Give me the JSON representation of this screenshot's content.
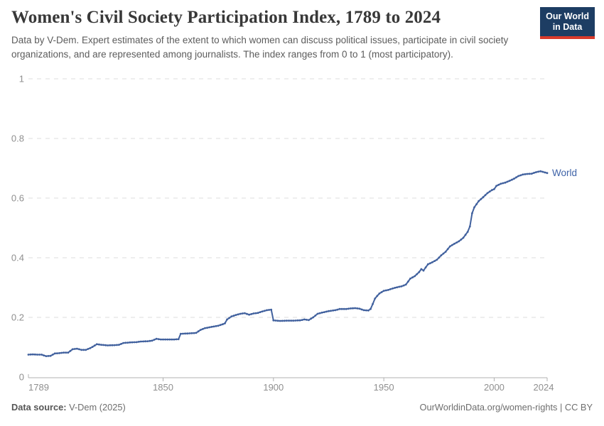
{
  "header": {
    "title": "Women's Civil Society Participation Index, 1789 to 2024",
    "subtitle": "Data by V-Dem. Expert estimates of the extent to which women can discuss political issues, participate in civil society organizations, and are represented among journalists. The index ranges from 0 to 1 (most participatory).",
    "logo": {
      "line1": "Our World",
      "line2": "in Data",
      "bg_color": "#1d3d63",
      "accent_color": "#d93a2b"
    }
  },
  "chart_data": {
    "type": "line",
    "title": "Women's Civil Society Participation Index, 1789 to 2024",
    "xlabel": "",
    "ylabel": "",
    "xlim": [
      1789,
      2024
    ],
    "ylim": [
      0,
      1
    ],
    "grid": "dashed-horizontal",
    "legend": "end-of-line-label",
    "x_ticks": [
      [
        1789,
        "1789"
      ],
      [
        1850,
        "1850"
      ],
      [
        1900,
        "1900"
      ],
      [
        1950,
        "1950"
      ],
      [
        2000,
        "2000"
      ],
      [
        2024,
        "2024"
      ]
    ],
    "y_ticks": [
      [
        0,
        "0"
      ],
      [
        0.2,
        "0.2"
      ],
      [
        0.4,
        "0.4"
      ],
      [
        0.6,
        "0.6"
      ],
      [
        0.8,
        "0.8"
      ],
      [
        1,
        "1"
      ]
    ],
    "series": [
      {
        "name": "World",
        "color": "#41619e",
        "label_color": "#3e63a8",
        "points": [
          [
            1789,
            0.075
          ],
          [
            1791,
            0.076
          ],
          [
            1793,
            0.075
          ],
          [
            1795,
            0.075
          ],
          [
            1797,
            0.07
          ],
          [
            1799,
            0.071
          ],
          [
            1801,
            0.079
          ],
          [
            1803,
            0.08
          ],
          [
            1805,
            0.082
          ],
          [
            1807,
            0.082
          ],
          [
            1809,
            0.093
          ],
          [
            1811,
            0.095
          ],
          [
            1813,
            0.091
          ],
          [
            1815,
            0.091
          ],
          [
            1817,
            0.097
          ],
          [
            1818,
            0.101
          ],
          [
            1820,
            0.11
          ],
          [
            1822,
            0.108
          ],
          [
            1825,
            0.106
          ],
          [
            1828,
            0.107
          ],
          [
            1830,
            0.108
          ],
          [
            1832,
            0.114
          ],
          [
            1835,
            0.116
          ],
          [
            1838,
            0.117
          ],
          [
            1840,
            0.119
          ],
          [
            1843,
            0.12
          ],
          [
            1845,
            0.122
          ],
          [
            1847,
            0.128
          ],
          [
            1849,
            0.126
          ],
          [
            1852,
            0.126
          ],
          [
            1855,
            0.126
          ],
          [
            1857,
            0.127
          ],
          [
            1858,
            0.145
          ],
          [
            1861,
            0.146
          ],
          [
            1863,
            0.147
          ],
          [
            1865,
            0.148
          ],
          [
            1867,
            0.158
          ],
          [
            1869,
            0.164
          ],
          [
            1872,
            0.168
          ],
          [
            1875,
            0.172
          ],
          [
            1877,
            0.177
          ],
          [
            1878,
            0.18
          ],
          [
            1879,
            0.193
          ],
          [
            1881,
            0.203
          ],
          [
            1883,
            0.208
          ],
          [
            1885,
            0.212
          ],
          [
            1887,
            0.214
          ],
          [
            1889,
            0.209
          ],
          [
            1891,
            0.213
          ],
          [
            1893,
            0.215
          ],
          [
            1895,
            0.22
          ],
          [
            1897,
            0.224
          ],
          [
            1899,
            0.226
          ],
          [
            1900,
            0.19
          ],
          [
            1903,
            0.188
          ],
          [
            1906,
            0.189
          ],
          [
            1909,
            0.189
          ],
          [
            1912,
            0.19
          ],
          [
            1914,
            0.193
          ],
          [
            1916,
            0.191
          ],
          [
            1918,
            0.2
          ],
          [
            1920,
            0.212
          ],
          [
            1922,
            0.216
          ],
          [
            1925,
            0.221
          ],
          [
            1928,
            0.224
          ],
          [
            1930,
            0.228
          ],
          [
            1933,
            0.228
          ],
          [
            1935,
            0.23
          ],
          [
            1937,
            0.231
          ],
          [
            1939,
            0.229
          ],
          [
            1941,
            0.224
          ],
          [
            1943,
            0.223
          ],
          [
            1944,
            0.228
          ],
          [
            1945,
            0.245
          ],
          [
            1946,
            0.263
          ],
          [
            1947,
            0.272
          ],
          [
            1948,
            0.28
          ],
          [
            1950,
            0.289
          ],
          [
            1952,
            0.292
          ],
          [
            1954,
            0.297
          ],
          [
            1956,
            0.301
          ],
          [
            1958,
            0.304
          ],
          [
            1960,
            0.31
          ],
          [
            1962,
            0.33
          ],
          [
            1964,
            0.338
          ],
          [
            1966,
            0.352
          ],
          [
            1967,
            0.362
          ],
          [
            1968,
            0.357
          ],
          [
            1970,
            0.378
          ],
          [
            1972,
            0.385
          ],
          [
            1974,
            0.393
          ],
          [
            1976,
            0.408
          ],
          [
            1978,
            0.42
          ],
          [
            1980,
            0.438
          ],
          [
            1982,
            0.447
          ],
          [
            1984,
            0.455
          ],
          [
            1986,
            0.467
          ],
          [
            1988,
            0.487
          ],
          [
            1989,
            0.505
          ],
          [
            1990,
            0.549
          ],
          [
            1991,
            0.569
          ],
          [
            1993,
            0.59
          ],
          [
            1995,
            0.603
          ],
          [
            1997,
            0.617
          ],
          [
            1999,
            0.627
          ],
          [
            2000,
            0.63
          ],
          [
            2001,
            0.641
          ],
          [
            2003,
            0.648
          ],
          [
            2005,
            0.652
          ],
          [
            2007,
            0.658
          ],
          [
            2009,
            0.665
          ],
          [
            2011,
            0.674
          ],
          [
            2013,
            0.679
          ],
          [
            2015,
            0.681
          ],
          [
            2017,
            0.682
          ],
          [
            2019,
            0.687
          ],
          [
            2021,
            0.69
          ],
          [
            2023,
            0.686
          ],
          [
            2024,
            0.684
          ]
        ]
      }
    ],
    "style": {
      "grid_color": "#dedede",
      "axis_color": "#b0b0b0",
      "tick_label_color": "#8f8f8f"
    }
  },
  "footer": {
    "source_label": "Data source:",
    "source_value": " V-Dem (2025)",
    "license": "OurWorldinData.org/women-rights | CC BY"
  }
}
